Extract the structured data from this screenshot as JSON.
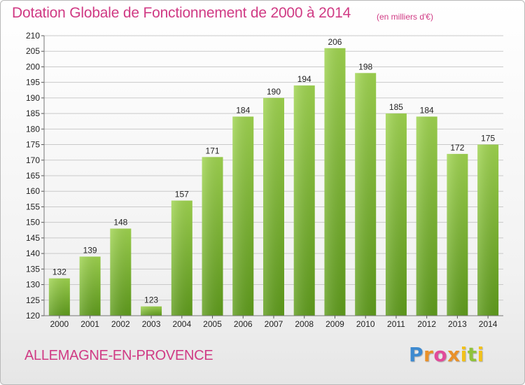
{
  "header": {
    "title": "Dotation Globale de Fonctionnement de 2000 à 2014",
    "subtitle": "(en milliers d'€)"
  },
  "footer": {
    "commune": "ALLEMAGNE-EN-PROVENCE",
    "logo": "Proxiti"
  },
  "chart_data": {
    "type": "bar",
    "title": "Dotation Globale de Fonctionnement de 2000 à 2014",
    "subtitle": "(en milliers d'€)",
    "categories": [
      "2000",
      "2001",
      "2002",
      "2003",
      "2004",
      "2005",
      "2006",
      "2007",
      "2008",
      "2009",
      "2010",
      "2011",
      "2012",
      "2013",
      "2014"
    ],
    "values": [
      132,
      139,
      148,
      123,
      157,
      171,
      184,
      190,
      194,
      206,
      198,
      185,
      184,
      172,
      175
    ],
    "ylim": [
      120,
      210
    ],
    "yticks": [
      120,
      125,
      130,
      135,
      140,
      145,
      150,
      155,
      160,
      165,
      170,
      175,
      180,
      185,
      190,
      195,
      200,
      205,
      210
    ],
    "grid": true,
    "bar_color": "#7fc13a",
    "title_color": "#d03a84"
  }
}
